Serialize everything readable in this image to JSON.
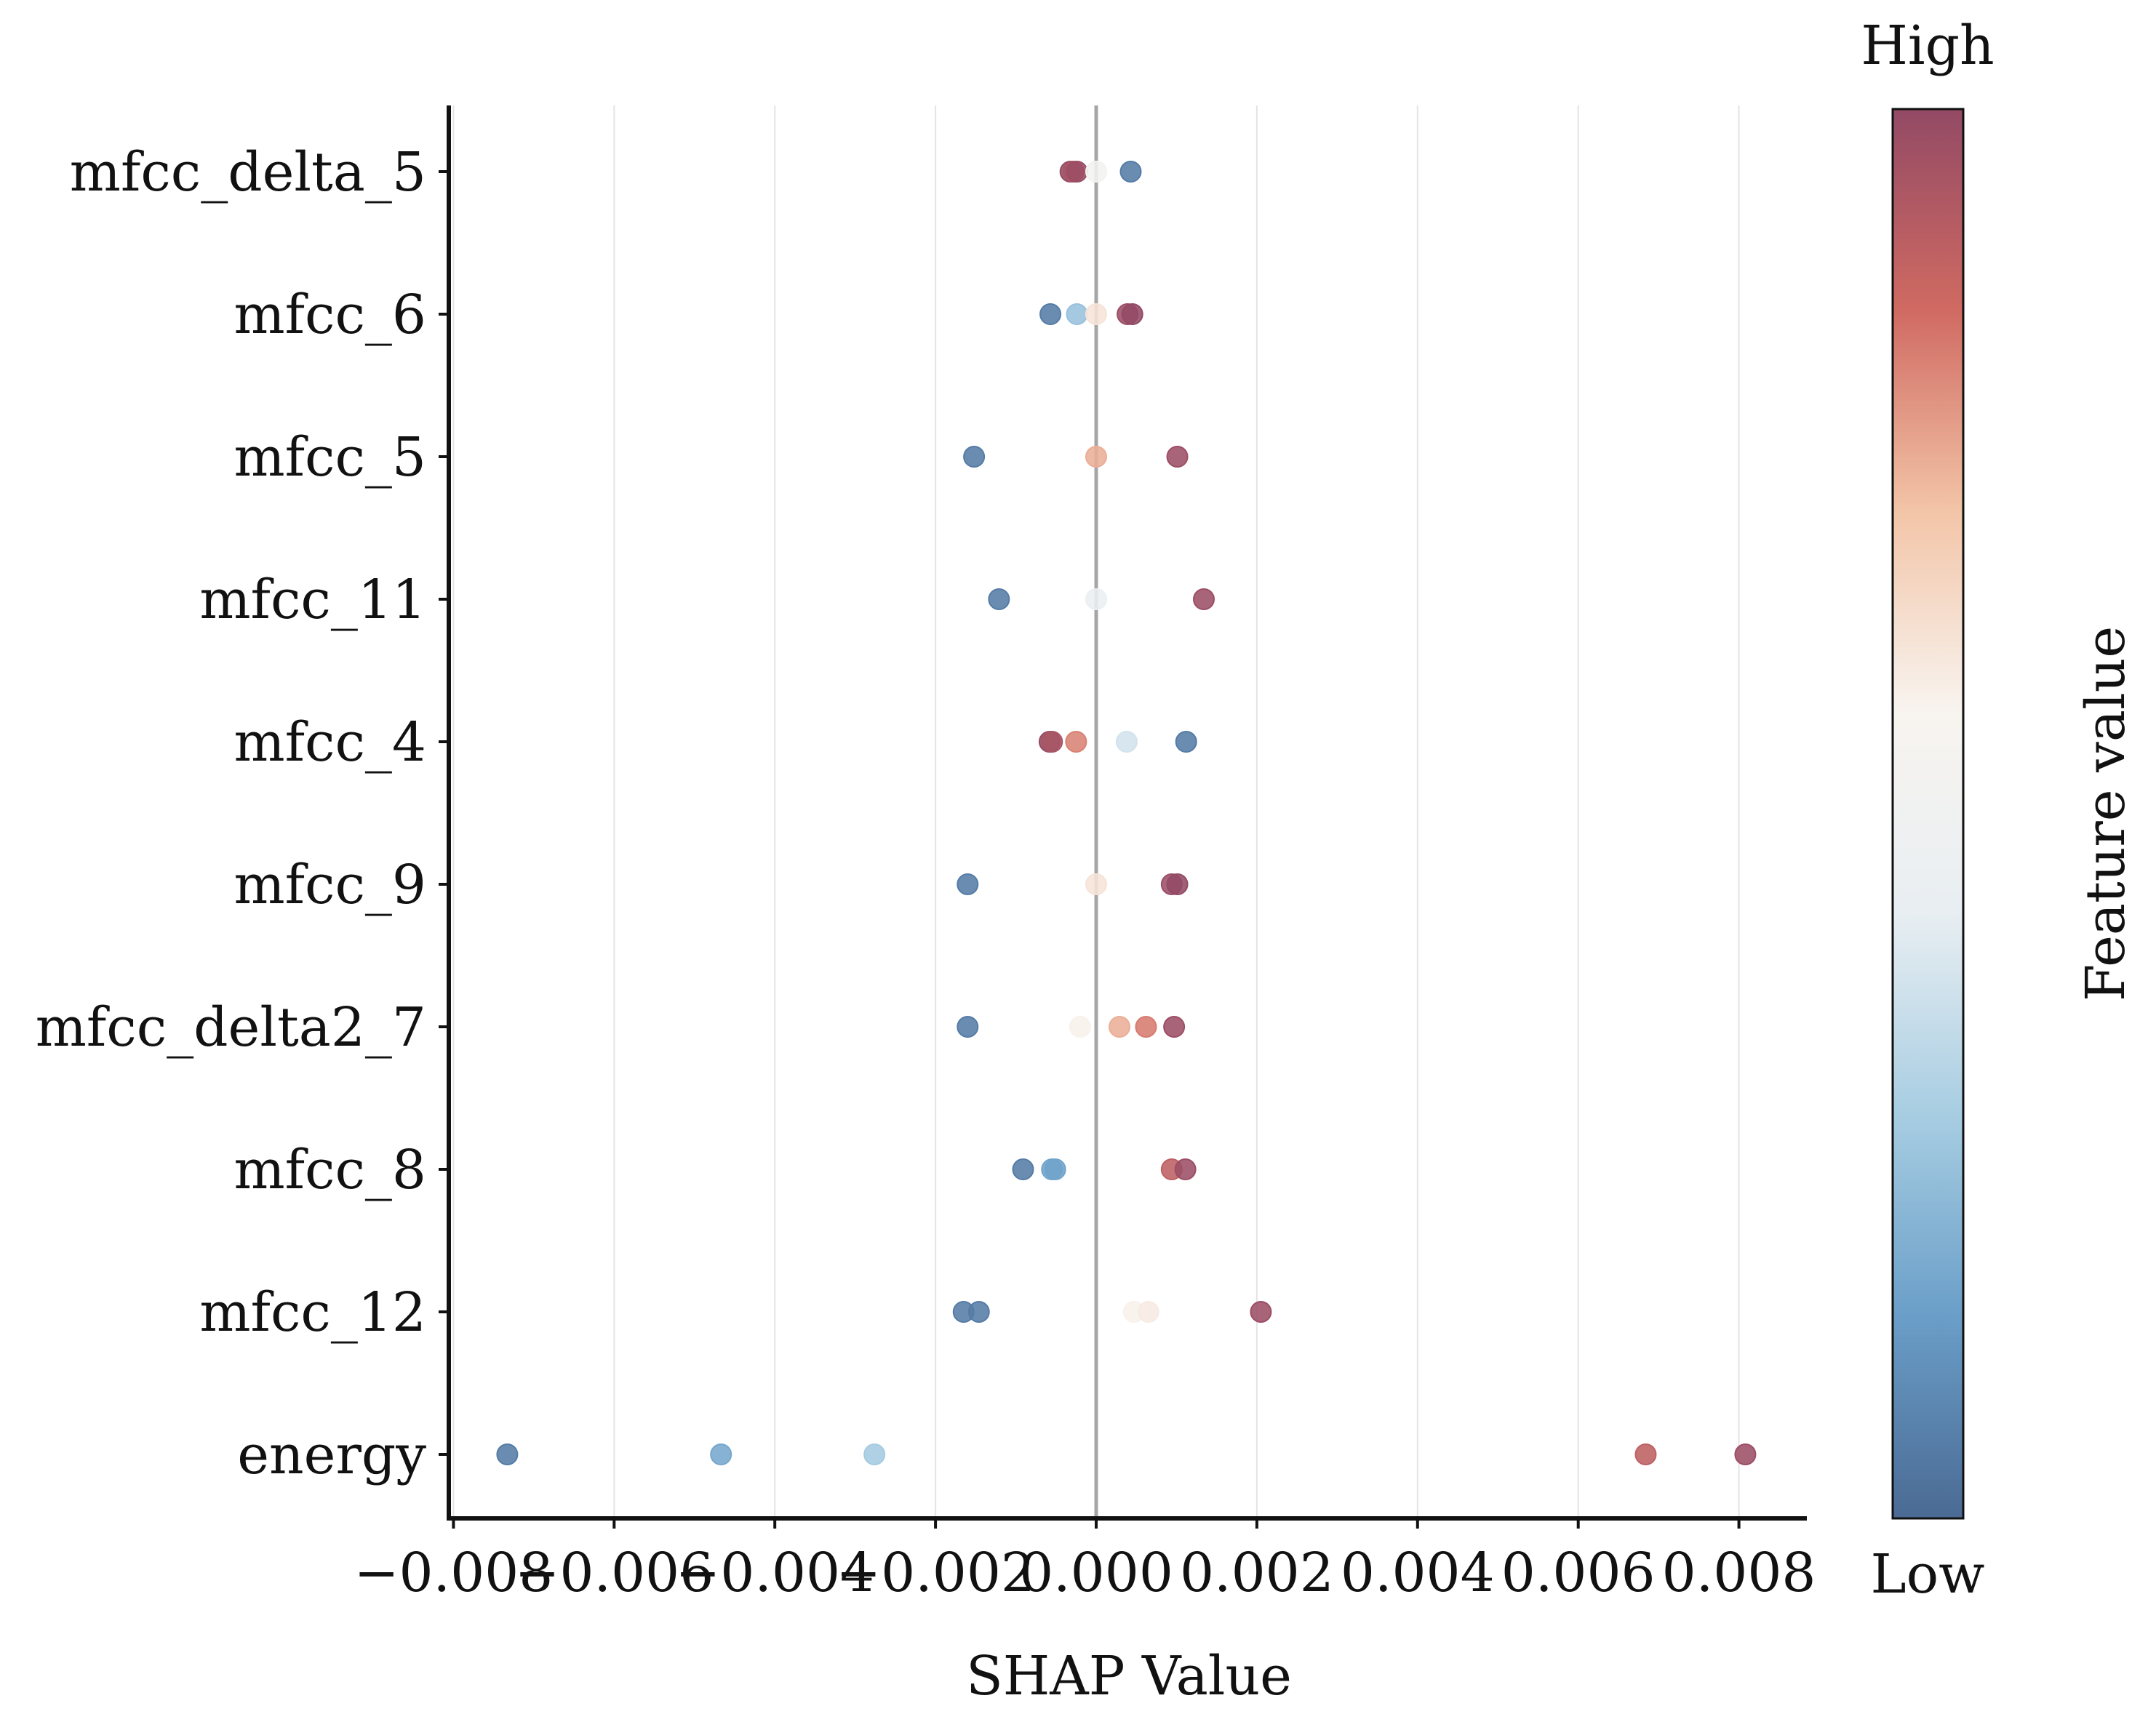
{
  "chart_data": {
    "type": "scatter",
    "title": "",
    "xlabel": "SHAP Value",
    "ylabel": "",
    "xlim": [
      -0.0083,
      0.0088
    ],
    "x_ticks": [
      -0.008,
      -0.006,
      -0.004,
      -0.002,
      0.0,
      0.002,
      0.004,
      0.006,
      0.008
    ],
    "x_tick_labels": [
      "−0.008",
      "−0.006",
      "−0.004",
      "−0.002",
      "0.000",
      "0.002",
      "0.004",
      "0.006",
      "0.008"
    ],
    "grid": "vertical",
    "zero_line": true,
    "colorbar": {
      "label": "Feature value",
      "high_label": "High",
      "low_label": "Low",
      "colors": [
        "#4a6a93",
        "#6a9ec8",
        "#a7cde2",
        "#e8eef2",
        "#f8f4f0",
        "#f3c5a8",
        "#d06a62",
        "#934a65"
      ]
    },
    "features": [
      {
        "name": "mfcc_delta_5",
        "points": [
          {
            "x": -0.00032,
            "v": 0.0
          },
          {
            "x": -0.00028,
            "v": 0.05
          },
          {
            "x": -0.00024,
            "v": 0.02
          },
          {
            "x": 0.0,
            "v": 0.48
          },
          {
            "x": 0.00043,
            "v": 0.95
          }
        ]
      },
      {
        "name": "mfcc_6",
        "points": [
          {
            "x": -0.00057,
            "v": 0.95
          },
          {
            "x": -0.00024,
            "v": 0.75
          },
          {
            "x": 0.0,
            "v": 0.38
          },
          {
            "x": 0.00039,
            "v": 0.02
          },
          {
            "x": 0.00045,
            "v": 0.0
          }
        ]
      },
      {
        "name": "mfcc_5",
        "points": [
          {
            "x": -0.00152,
            "v": 0.95
          },
          {
            "x": 0.0,
            "v": 0.25
          },
          {
            "x": 0.00101,
            "v": 0.02
          }
        ]
      },
      {
        "name": "mfcc_11",
        "points": [
          {
            "x": -0.00121,
            "v": 0.95
          },
          {
            "x": 0.0,
            "v": 0.55
          },
          {
            "x": 0.00134,
            "v": 0.02
          }
        ]
      },
      {
        "name": "mfcc_4",
        "points": [
          {
            "x": -0.00058,
            "v": 0.0
          },
          {
            "x": -0.00055,
            "v": 0.05
          },
          {
            "x": -0.00025,
            "v": 0.18
          },
          {
            "x": 0.00038,
            "v": 0.62
          },
          {
            "x": 0.00112,
            "v": 0.95
          }
        ]
      },
      {
        "name": "mfcc_9",
        "points": [
          {
            "x": -0.0016,
            "v": 0.95
          },
          {
            "x": 0.0,
            "v": 0.38
          },
          {
            "x": 0.00094,
            "v": 0.02
          },
          {
            "x": 0.00101,
            "v": 0.0
          }
        ]
      },
      {
        "name": "mfcc_delta2_7",
        "points": [
          {
            "x": -0.0016,
            "v": 0.95
          },
          {
            "x": -0.0002,
            "v": 0.42
          },
          {
            "x": 0.00029,
            "v": 0.25
          },
          {
            "x": 0.00062,
            "v": 0.17
          },
          {
            "x": 0.00097,
            "v": 0.02
          }
        ]
      },
      {
        "name": "mfcc_8",
        "points": [
          {
            "x": -0.00091,
            "v": 0.95
          },
          {
            "x": -0.00055,
            "v": 0.84
          },
          {
            "x": -0.00051,
            "v": 0.84
          },
          {
            "x": 0.00094,
            "v": 0.1
          },
          {
            "x": 0.00111,
            "v": 0.02
          }
        ]
      },
      {
        "name": "mfcc_12",
        "points": [
          {
            "x": -0.00165,
            "v": 0.95
          },
          {
            "x": -0.00146,
            "v": 0.95
          },
          {
            "x": 0.00047,
            "v": 0.42
          },
          {
            "x": 0.00065,
            "v": 0.4
          },
          {
            "x": 0.00205,
            "v": 0.02
          }
        ]
      },
      {
        "name": "energy",
        "points": [
          {
            "x": -0.00733,
            "v": 0.95
          },
          {
            "x": -0.00467,
            "v": 0.83
          },
          {
            "x": -0.00276,
            "v": 0.72
          },
          {
            "x": 0.00684,
            "v": 0.1
          },
          {
            "x": 0.00808,
            "v": 0.02
          }
        ]
      }
    ]
  }
}
